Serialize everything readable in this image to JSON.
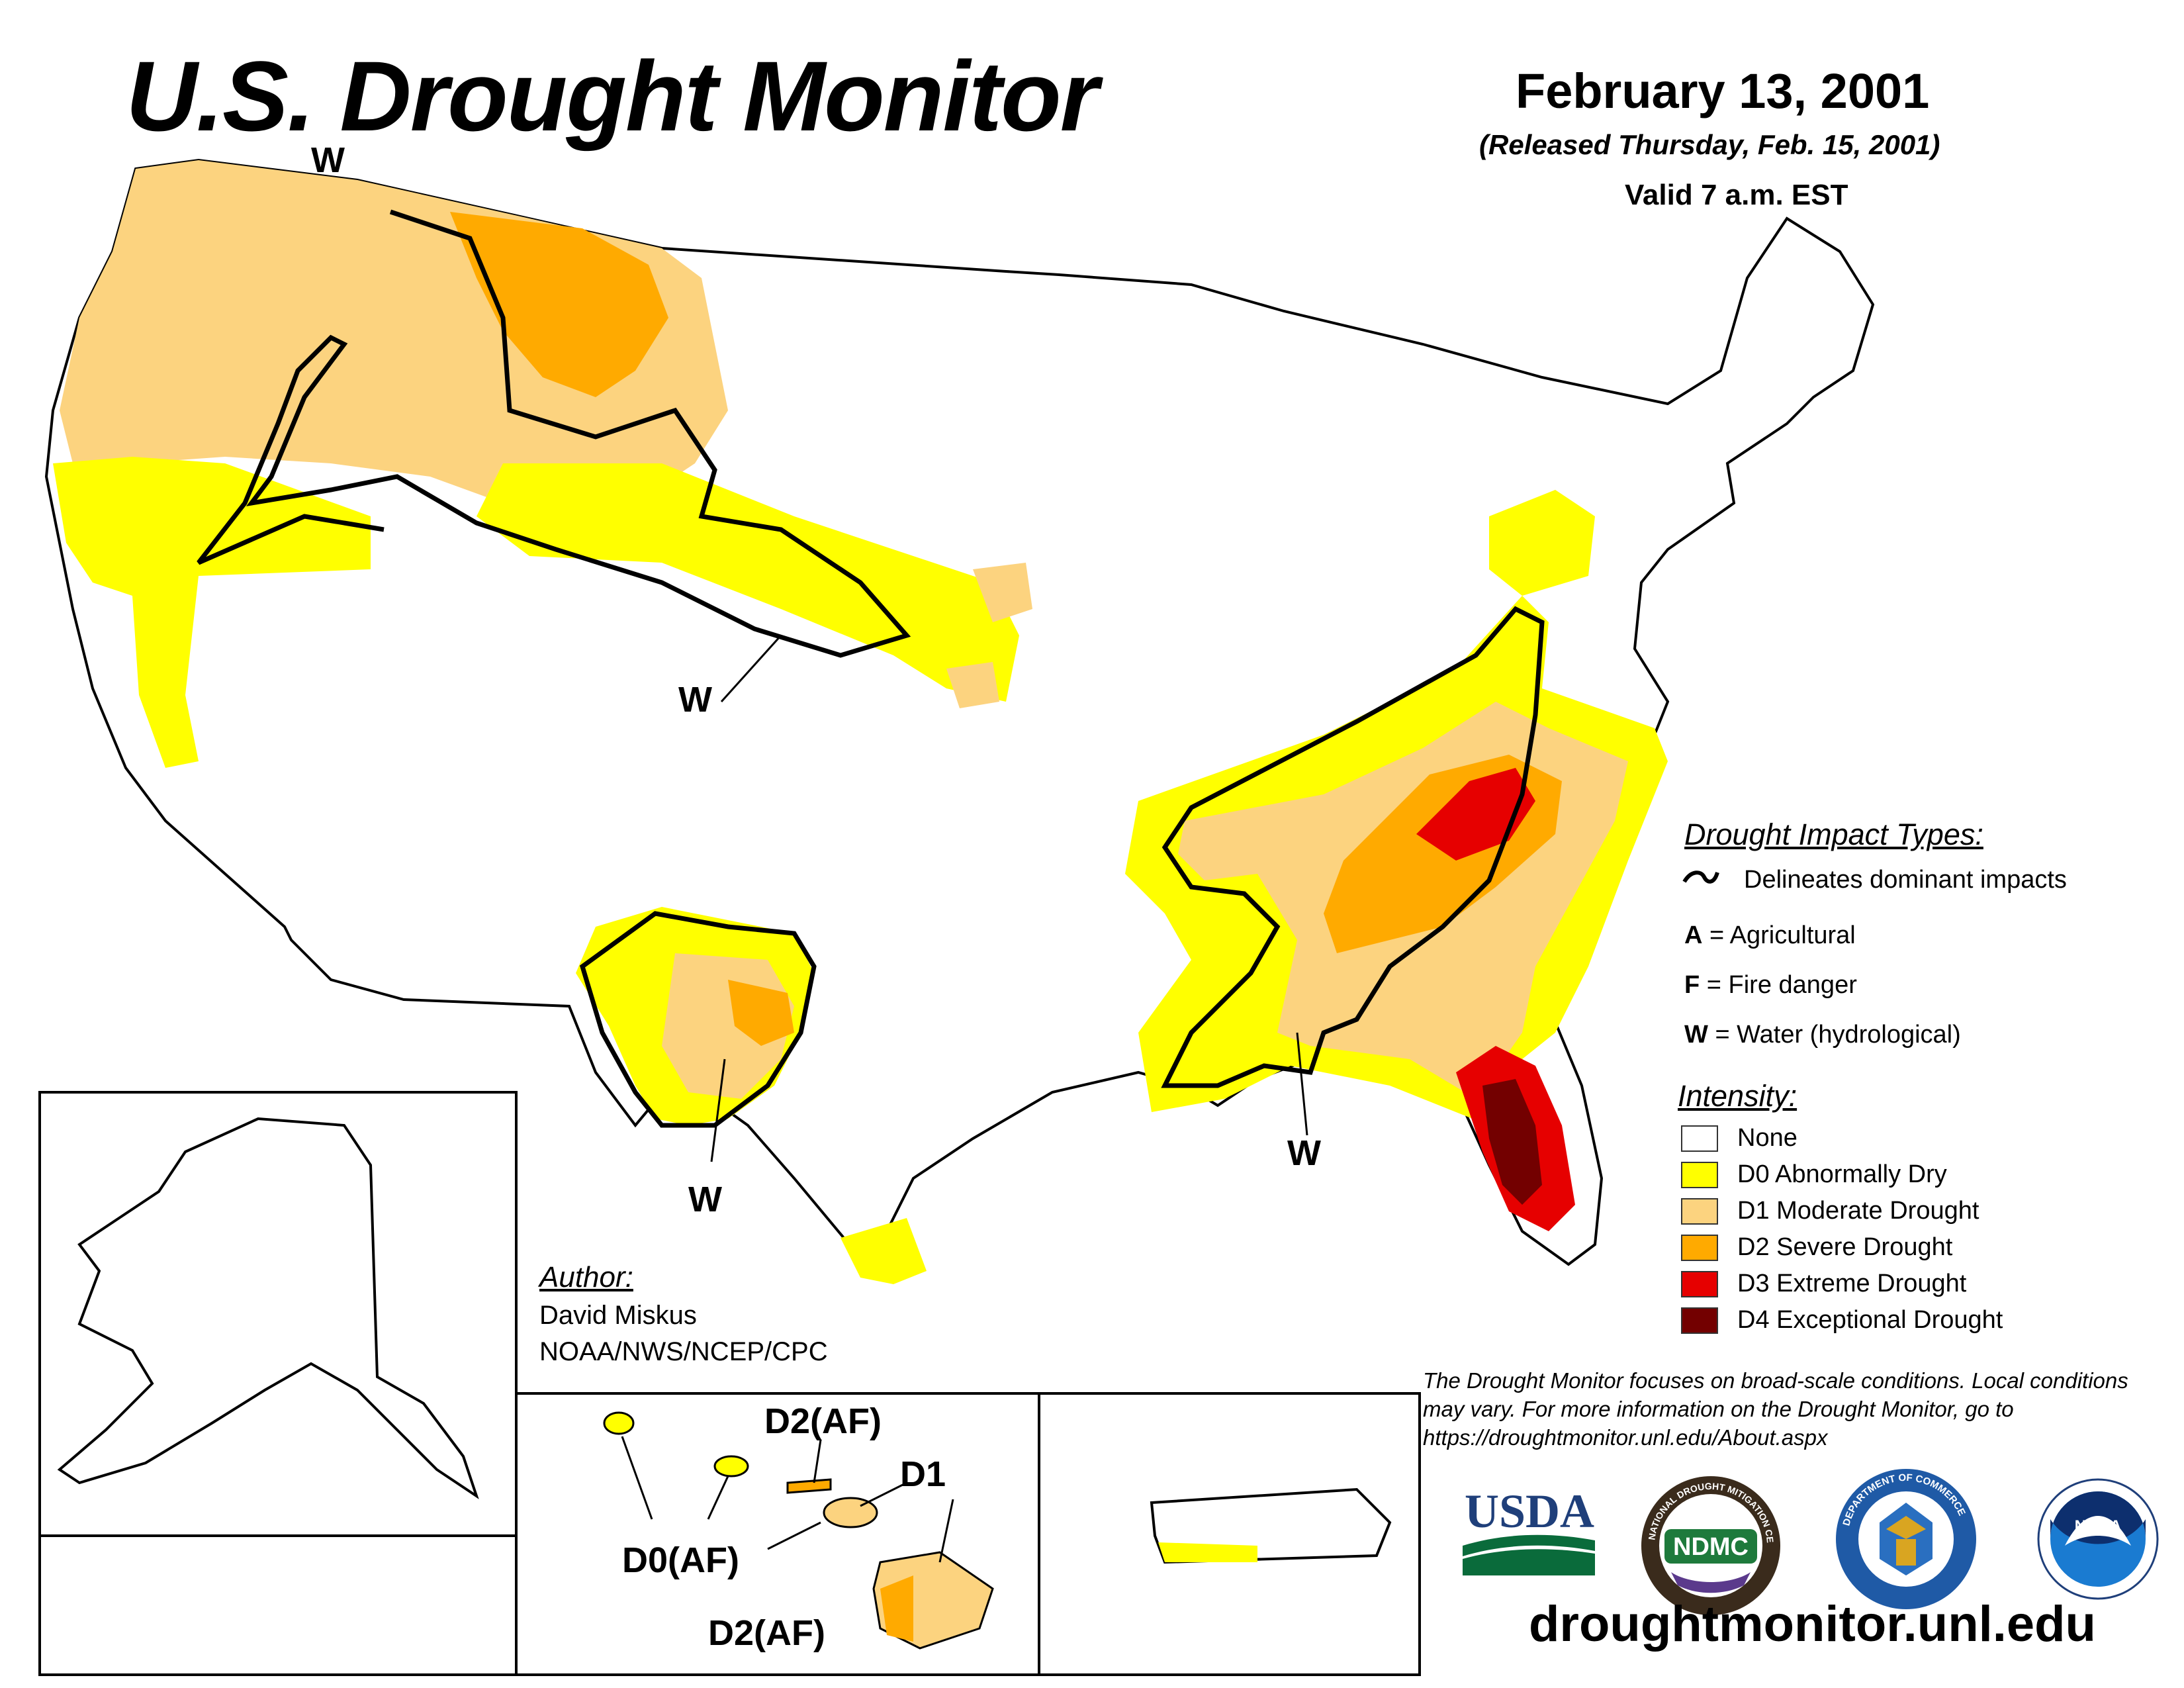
{
  "header": {
    "title": "U.S. Drought Monitor",
    "date": "February 13, 2001",
    "released": "(Released Thursday, Feb. 15, 2001)",
    "valid": "Valid 7 a.m. EST"
  },
  "map_labels": {
    "w_pnw": "W",
    "w_plains": "W",
    "w_texas": "W",
    "w_southeast": "W",
    "hi_d2af_top": "D2(AF)",
    "hi_d1": "D1",
    "hi_d0af": "D0(AF)",
    "hi_d2af_bottom": "D2(AF)"
  },
  "legend": {
    "impact_heading": "Drought Impact Types:",
    "impact_line": "Delineates dominant impacts",
    "impacts": [
      {
        "code": "A",
        "label": "= Agricultural"
      },
      {
        "code": "F",
        "label": "= Fire danger"
      },
      {
        "code": "W",
        "label": "= Water (hydrological)"
      }
    ],
    "intensity_heading": "Intensity:",
    "intensity": [
      {
        "label": "None",
        "color": "#ffffff"
      },
      {
        "label": "D0 Abnormally Dry",
        "color": "#ffff00"
      },
      {
        "label": "D1 Moderate Drought",
        "color": "#fcd37f"
      },
      {
        "label": "D2 Severe Drought",
        "color": "#ffaa00"
      },
      {
        "label": "D3 Extreme Drought",
        "color": "#e60000"
      },
      {
        "label": "D4 Exceptional Drought",
        "color": "#730000"
      }
    ]
  },
  "author": {
    "heading": "Author:",
    "name": "David Miskus",
    "org": "NOAA/NWS/NCEP/CPC"
  },
  "note": "The Drought Monitor focuses on broad-scale conditions. Local conditions may vary. For more information on the Drought Monitor, go to https://droughtmonitor.unl.edu/About.aspx",
  "logos": {
    "usda": "USDA",
    "ndmc": "NDMC",
    "ndmc_ring": "NATIONAL DROUGHT MITIGATION CENTER",
    "doc_ring": "DEPARTMENT OF COMMERCE",
    "noaa": "NOAA"
  },
  "website": "droughtmonitor.unl.edu"
}
